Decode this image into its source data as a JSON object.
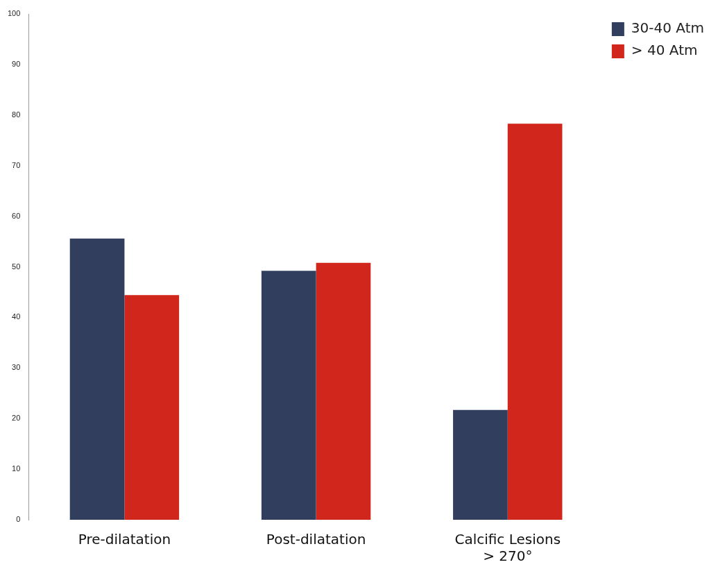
{
  "chart_data": {
    "type": "bar",
    "categories": [
      "Pre-dilatation",
      "Post-dilatation",
      "Calcific Lesions\n> 270°"
    ],
    "series": [
      {
        "name": "30-40 Atm",
        "color": "#313e5e",
        "values": [
          55.6,
          49.2,
          21.7
        ]
      },
      {
        "name": "> 40 Atm",
        "color": "#d0261b",
        "values": [
          44.4,
          50.8,
          78.3
        ]
      }
    ],
    "ylim": [
      0,
      100
    ],
    "yticks": [
      0,
      10,
      20,
      30,
      40,
      50,
      60,
      70,
      80,
      90,
      100
    ],
    "grid": false,
    "legend": "top right"
  }
}
